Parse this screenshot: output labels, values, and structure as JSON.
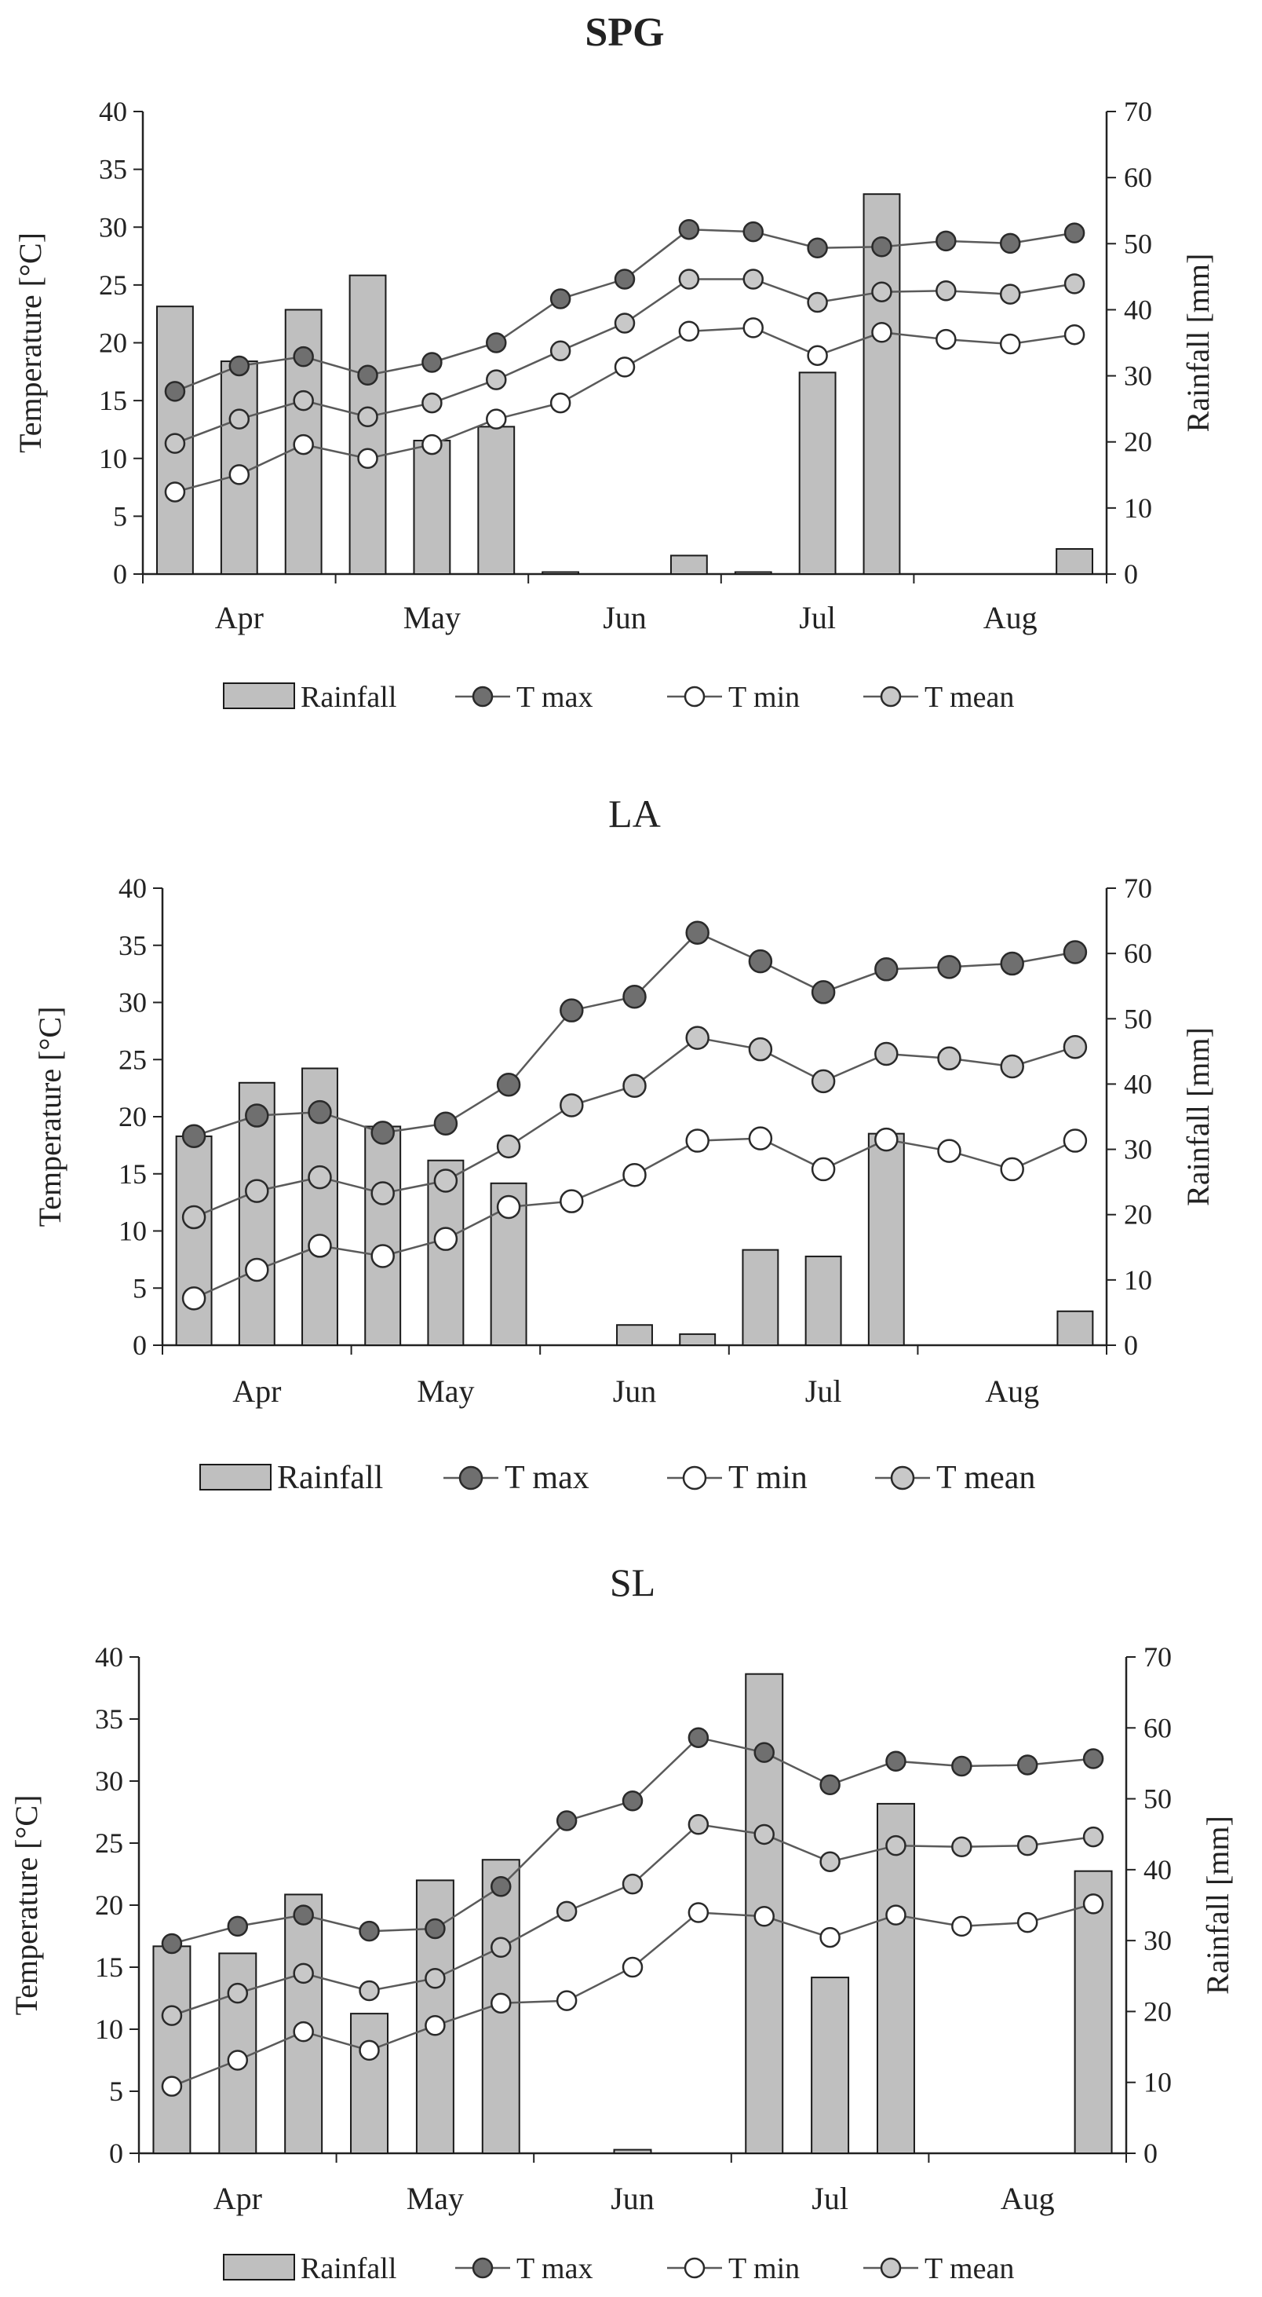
{
  "colors": {
    "bar_fill": "#bfbfbf",
    "bar_stroke": "#1a1a1a",
    "line": "#5a5a5a",
    "tmax_marker": "#6f6f6f",
    "tmin_marker": "#ffffff",
    "tmean_marker": "#c8c8c8",
    "axis": "#222222"
  },
  "legend_labels": {
    "rainfall": "Rainfall",
    "tmax": "T max",
    "tmin": "T min",
    "tmean": "T mean"
  },
  "chart_data": [
    {
      "type": "bar+line",
      "title": "SPG",
      "ylabel": "Temperature [°C]",
      "y2label": "Rainfall [mm]",
      "ylim": [
        0,
        40
      ],
      "y2lim": [
        0,
        70
      ],
      "yticks": [
        "0",
        "5",
        "10",
        "15",
        "20",
        "25",
        "30",
        "35",
        "40"
      ],
      "y2ticks": [
        "0",
        "10",
        "20",
        "30",
        "40",
        "50",
        "60",
        "70"
      ],
      "month_labels": [
        "Apr",
        "May",
        "Jun",
        "Jul",
        "Aug"
      ],
      "legend": "bottom",
      "series": [
        {
          "name": "Rainfall",
          "kind": "bar",
          "axis": "right",
          "values": [
            40.5,
            32.2,
            40,
            45.2,
            20.2,
            22.3,
            0.3,
            0,
            2.8,
            0.3,
            30.5,
            57.5,
            0,
            0,
            3.8
          ]
        },
        {
          "name": "T max",
          "kind": "line",
          "axis": "left",
          "values": [
            15.8,
            18,
            18.8,
            17.2,
            18.3,
            20,
            23.8,
            25.5,
            29.8,
            29.6,
            28.2,
            28.3,
            28.8,
            28.6,
            29.5
          ]
        },
        {
          "name": "T min",
          "kind": "line",
          "axis": "left",
          "values": [
            7.1,
            8.6,
            11.2,
            10,
            11.2,
            13.4,
            14.8,
            17.9,
            21,
            21.3,
            18.9,
            20.9,
            20.3,
            19.9,
            20.7
          ]
        },
        {
          "name": "T mean",
          "kind": "line",
          "axis": "left",
          "values": [
            11.3,
            13.4,
            15,
            13.6,
            14.8,
            16.8,
            19.3,
            21.7,
            25.5,
            25.5,
            23.5,
            24.4,
            24.5,
            24.2,
            25.1
          ]
        }
      ]
    },
    {
      "type": "bar+line",
      "title": "LA",
      "ylabel": "Temperature [°C]",
      "y2label": "Rainfall [mm]",
      "ylim": [
        0,
        40
      ],
      "y2lim": [
        0,
        70
      ],
      "yticks": [
        "0",
        "5",
        "10",
        "15",
        "20",
        "25",
        "30",
        "35",
        "40"
      ],
      "y2ticks": [
        "0",
        "10",
        "20",
        "30",
        "40",
        "50",
        "60",
        "70"
      ],
      "month_labels": [
        "Apr",
        "May",
        "Jun",
        "Jul",
        "Aug"
      ],
      "legend": "bottom",
      "series": [
        {
          "name": "Rainfall",
          "kind": "bar",
          "axis": "right",
          "values": [
            32,
            40.2,
            42.4,
            33.5,
            28.3,
            24.8,
            0,
            3.1,
            1.7,
            14.6,
            13.6,
            32.4,
            0,
            0,
            5.2
          ]
        },
        {
          "name": "T max",
          "kind": "line",
          "axis": "left",
          "values": [
            18.3,
            20.1,
            20.4,
            18.6,
            19.4,
            22.8,
            29.3,
            30.5,
            36.1,
            33.6,
            30.9,
            32.9,
            33.1,
            33.4,
            34.4
          ]
        },
        {
          "name": "T min",
          "kind": "line",
          "axis": "left",
          "values": [
            4.1,
            6.6,
            8.7,
            7.8,
            9.3,
            12.1,
            12.6,
            14.9,
            17.9,
            18.1,
            15.4,
            18,
            17,
            15.4,
            17.9
          ]
        },
        {
          "name": "T mean",
          "kind": "line",
          "axis": "left",
          "values": [
            11.2,
            13.5,
            14.7,
            13.3,
            14.4,
            17.4,
            21,
            22.7,
            26.9,
            25.9,
            23.1,
            25.5,
            25.1,
            24.4,
            26.1
          ]
        }
      ]
    },
    {
      "type": "bar+line",
      "title": "SL",
      "ylabel": "Temperature [°C]",
      "y2label": "Rainfall [mm]",
      "ylim": [
        0,
        40
      ],
      "y2lim": [
        0,
        70
      ],
      "yticks": [
        "0",
        "5",
        "10",
        "15",
        "20",
        "25",
        "30",
        "35",
        "40"
      ],
      "y2ticks": [
        "0",
        "10",
        "20",
        "30",
        "40",
        "50",
        "60",
        "70"
      ],
      "month_labels": [
        "Apr",
        "May",
        "Jun",
        "Jul",
        "Aug"
      ],
      "legend": "bottom",
      "series": [
        {
          "name": "Rainfall",
          "kind": "bar",
          "axis": "right",
          "values": [
            29.2,
            28.2,
            36.5,
            19.7,
            38.5,
            41.4,
            0,
            0.5,
            0,
            67.6,
            24.8,
            49.3,
            0,
            0,
            39.8
          ]
        },
        {
          "name": "T max",
          "kind": "line",
          "axis": "left",
          "values": [
            16.9,
            18.3,
            19.2,
            17.9,
            18.1,
            21.5,
            26.8,
            28.4,
            33.5,
            32.3,
            29.7,
            31.6,
            31.2,
            31.3,
            31.8
          ]
        },
        {
          "name": "T min",
          "kind": "line",
          "axis": "left",
          "values": [
            5.4,
            7.5,
            9.8,
            8.3,
            10.3,
            12.1,
            12.3,
            15,
            19.4,
            19.1,
            17.4,
            19.2,
            18.3,
            18.6,
            20.1
          ]
        },
        {
          "name": "T mean",
          "kind": "line",
          "axis": "left",
          "values": [
            11.1,
            12.9,
            14.5,
            13.1,
            14.1,
            16.6,
            19.5,
            21.7,
            26.5,
            25.7,
            23.5,
            24.8,
            24.7,
            24.8,
            25.5
          ]
        }
      ]
    }
  ]
}
